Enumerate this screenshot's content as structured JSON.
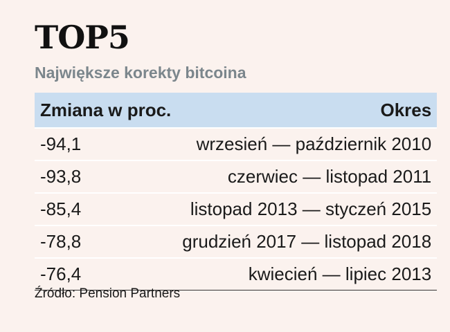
{
  "title": "TOP5",
  "subtitle": "Największe korekty bitcoina",
  "source": "Źródło: Pension Partners",
  "chart_data": {
    "type": "table",
    "title": "TOP5",
    "subtitle": "Największe korekty bitcoina",
    "columns": [
      "Zmiana w proc.",
      "Okres"
    ],
    "rows": [
      {
        "change": "-94,1",
        "period": "wrzesień — październik 2010"
      },
      {
        "change": "-93,8",
        "period": "czerwiec — listopad 2011"
      },
      {
        "change": "-85,4",
        "period": "listopad 2013 — styczeń 2015"
      },
      {
        "change": "-78,8",
        "period": "grudzień 2017 — listopad 2018"
      },
      {
        "change": "-76,4",
        "period": "kwiecień — lipiec 2013"
      }
    ],
    "colors": {
      "header_bg": "#c9ddf0",
      "subtitle": "#7b868c",
      "background": "#fbf2ee"
    }
  }
}
